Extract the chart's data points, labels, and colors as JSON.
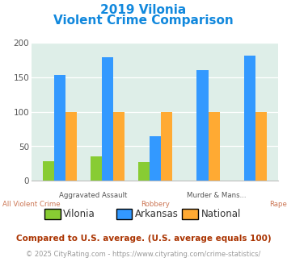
{
  "title_line1": "2019 Vilonia",
  "title_line2": "Violent Crime Comparison",
  "categories_top": [
    "Aggravated Assault",
    "Murder & Mans...",
    ""
  ],
  "categories_bottom": [
    "All Violent Crime",
    "Robbery",
    "Rape"
  ],
  "xtick_top": [
    "",
    "Aggravated Assault",
    "",
    "Murder & Mans...",
    ""
  ],
  "xtick_bottom": [
    "All Violent Crime",
    "",
    "Robbery",
    "",
    "Rape"
  ],
  "vilonia": [
    28,
    35,
    27,
    0,
    0
  ],
  "arkansas": [
    153,
    179,
    65,
    160,
    181
  ],
  "national": [
    100,
    100,
    100,
    100,
    100
  ],
  "vilonia_color": "#88cc33",
  "arkansas_color": "#3399ff",
  "national_color": "#ffaa33",
  "ylim": [
    0,
    200
  ],
  "yticks": [
    0,
    50,
    100,
    150,
    200
  ],
  "plot_bg_color": "#deeee8",
  "title_color": "#1188dd",
  "xtick_top_color": "#555555",
  "xtick_bottom_color": "#cc7755",
  "legend_text_color": "#333333",
  "footnote1": "Compared to U.S. average. (U.S. average equals 100)",
  "footnote2": "© 2025 CityRating.com - https://www.cityrating.com/crime-statistics/",
  "footnote1_color": "#aa3300",
  "footnote2_color": "#999999",
  "url_color": "#4488cc"
}
